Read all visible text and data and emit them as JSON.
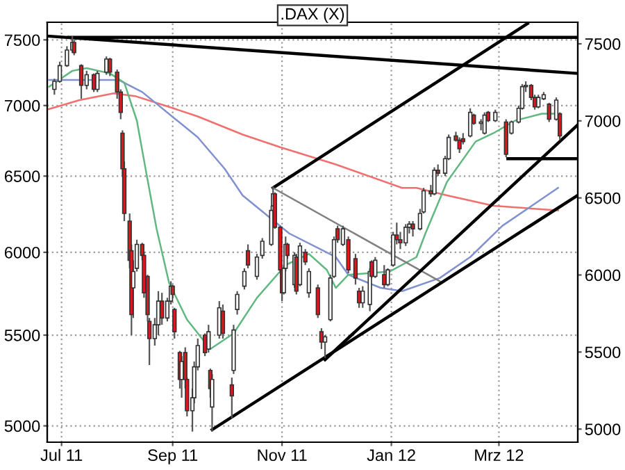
{
  "chart_data": {
    "type": "candlestick",
    "title": ".DAX (X)",
    "log": true,
    "grid": true,
    "xlim": [
      "2011-06-23",
      "2012-04-14"
    ],
    "y2lim": [
      4915,
      7640
    ],
    "y2ticks": [
      5000,
      5500,
      6000,
      6500,
      7000,
      7500
    ],
    "xticks": [
      {
        "value": "2011-07-01",
        "label": "Jul 11"
      },
      {
        "value": "2011-09-01",
        "label": "Sep 11"
      },
      {
        "value": "2011-11-01",
        "label": "Nov 11"
      },
      {
        "value": "2012-01-01",
        "label": "Jan 12"
      },
      {
        "value": "2012-03-01",
        "label": "Mrz 12"
      }
    ],
    "ylim": [
      4915,
      7640
    ],
    "yticks": [
      5000,
      5500,
      6000,
      6500,
      7000,
      7500
    ],
    "series": [
      {
        "type": "line",
        "color": "#f07070",
        "x": [
          "2011-06-23",
          "2011-07-11",
          "2011-07-30",
          "2011-08-11",
          "2011-08-30",
          "2011-09-15",
          "2011-10-10",
          "2011-10-31",
          "2011-12-01",
          "2012-01-07",
          "2012-01-15",
          "2012-02-01",
          "2012-02-27",
          "2012-04-03"
        ],
        "values": [
          6970,
          7040,
          7090,
          7070,
          6990,
          6920,
          6790,
          6700,
          6580,
          6420,
          6420,
          6370,
          6300,
          6270
        ]
      },
      {
        "type": "line",
        "color": "#8090d0",
        "x": [
          "2011-06-24",
          "2011-08-02",
          "2011-08-15",
          "2011-09-15",
          "2011-09-30",
          "2011-10-10",
          "2011-11-05",
          "2011-12-01",
          "2011-12-08",
          "2011-12-26",
          "2012-01-07",
          "2012-01-28",
          "2012-02-14",
          "2012-03-03",
          "2012-04-03"
        ],
        "values": [
          7190,
          7190,
          7100,
          6770,
          6550,
          6370,
          6120,
          5970,
          5860,
          5780,
          5760,
          5840,
          5970,
          6170,
          6420
        ]
      },
      {
        "type": "line",
        "color": "#60b880",
        "x": [
          "2011-06-24",
          "2011-07-07",
          "2011-07-15",
          "2011-07-28",
          "2011-08-05",
          "2011-08-12",
          "2011-08-17",
          "2011-08-23",
          "2011-08-30",
          "2011-09-09",
          "2011-09-22",
          "2011-10-05",
          "2011-10-18",
          "2011-11-03",
          "2011-11-16",
          "2011-11-26",
          "2011-12-01",
          "2011-12-08",
          "2011-12-31",
          "2012-01-15",
          "2012-01-20",
          "2012-02-01",
          "2012-02-17",
          "2012-02-27",
          "2012-03-10",
          "2012-03-25",
          "2012-04-02"
        ],
        "values": [
          7140,
          7260,
          7280,
          7240,
          7170,
          6890,
          6540,
          6150,
          5810,
          5590,
          5420,
          5510,
          5720,
          5920,
          5990,
          5890,
          5780,
          5860,
          5880,
          5970,
          6120,
          6460,
          6740,
          6800,
          6890,
          6940,
          6940
        ]
      },
      {
        "type": "line",
        "color": "#000000",
        "x": [
          "2011-06-23",
          "2012-04-14"
        ],
        "values": [
          7530,
          7240
        ]
      },
      {
        "type": "line",
        "color": "#000000",
        "x": [
          "2011-07-05",
          "2012-04-14"
        ],
        "values": [
          7520,
          7520
        ]
      },
      {
        "type": "line",
        "color": "#000000",
        "x": [
          "2011-10-27",
          "2012-03-17"
        ],
        "values": [
          6420,
          7630
        ]
      },
      {
        "type": "line",
        "color": "#808080",
        "x": [
          "2011-10-27",
          "2012-01-28"
        ],
        "values": [
          6420,
          5820
        ]
      },
      {
        "type": "line",
        "color": "#000000",
        "x": [
          "2011-09-23",
          "2012-04-14"
        ],
        "values": [
          4980,
          6370
        ]
      },
      {
        "type": "line",
        "color": "#000000",
        "x": [
          "2011-11-25",
          "2012-04-14"
        ],
        "values": [
          5360,
          6860
        ]
      },
      {
        "type": "line",
        "color": "#000000",
        "x": [
          "2012-03-06",
          "2012-04-14"
        ],
        "values": [
          6620,
          6620
        ]
      },
      {
        "colors": [
          "#ffffff",
          "#ffffff",
          "#ffffff",
          "#ffffff",
          "#e8141c",
          "#e8141c",
          "#ffffff",
          "#e8141c",
          "#ffffff",
          "#ffffff",
          "#e8141c",
          "#e8141c",
          "#e8141c",
          "#e8141c",
          "#e8141c",
          "#e8141c",
          "#e8141c",
          "#ffffff",
          "#ffffff",
          "#e8141c",
          "#e8141c",
          "#e8141c",
          "#e8141c",
          "#ffffff",
          "#ffffff",
          "#e8141c",
          "#ffffff",
          "#ffffff",
          "#e8141c",
          "#e8141c",
          "#e8141c",
          "#ffffff",
          "#e8141c",
          "#e8141c",
          "#ffffff",
          "#ffffff",
          "#ffffff",
          "#e8141c",
          "#ffffff",
          "#e8141c",
          "#ffffff",
          "#ffffff",
          "#e8141c",
          "#e8141c",
          "#ffffff",
          "#ffffff",
          "#ffffff",
          "#e8141c",
          "#ffffff",
          "#ffffff",
          "#ffffff",
          "#ffffff",
          "#e8141c",
          "#e8141c",
          "#e8141c",
          "#ffffff",
          "#ffffff",
          "#e8141c",
          "#ffffff",
          "#e8141c",
          "#ffffff",
          "#e8141c",
          "#ffffff",
          "#e8141c",
          "#e8141c",
          "#ffffff",
          "#ffffff",
          "#ffffff",
          "#e8141c",
          "#ffffff",
          "#e8141c",
          "#e8141c",
          "#e8141c",
          "#ffffff",
          "#ffffff",
          "#e8141c",
          "#ffffff",
          "#e8141c",
          "#ffffff",
          "#ffffff",
          "#e8141c",
          "#e8141c",
          "#ffffff",
          "#ffffff",
          "#e8141c",
          "#ffffff",
          "#ffffff",
          "#e8141c",
          "#ffffff",
          "#e8141c",
          "#ffffff",
          "#ffffff",
          "#e8141c",
          "#e8141c",
          "#e8141c",
          "#ffffff",
          "#e8141c",
          "#ffffff",
          "#ffffff",
          "#e8141c",
          "#ffffff",
          "#e8141c",
          "#ffffff",
          "#ffffff",
          "#ffffff",
          "#ffffff",
          "#e8141c",
          "#e8141c",
          "#ffffff",
          "#ffffff",
          "#e8141c",
          "#ffffff",
          "#e8141c"
        ],
        "x": [
          "2011-06-27",
          "2011-06-30",
          "2011-07-04",
          "2011-07-07",
          "2011-07-08",
          "2011-07-12",
          "2011-07-15",
          "2011-07-19",
          "2011-07-21",
          "2011-07-26",
          "2011-07-28",
          "2011-08-01",
          "2011-08-03",
          "2011-08-04",
          "2011-08-05",
          "2011-08-08",
          "2011-08-09",
          "2011-08-10",
          "2011-08-12",
          "2011-08-15",
          "2011-08-16",
          "2011-08-18",
          "2011-08-19",
          "2011-08-22",
          "2011-08-24",
          "2011-08-26",
          "2011-08-29",
          "2011-08-31",
          "2011-09-01",
          "2011-09-02",
          "2011-09-05",
          "2011-09-06",
          "2011-09-08",
          "2011-09-09",
          "2011-09-12",
          "2011-09-13",
          "2011-09-15",
          "2011-09-19",
          "2011-09-21",
          "2011-09-22",
          "2011-09-23",
          "2011-09-27",
          "2011-09-29",
          "2011-10-04",
          "2011-10-05",
          "2011-10-07",
          "2011-10-11",
          "2011-10-13",
          "2011-10-18",
          "2011-10-21",
          "2011-10-26",
          "2011-10-27",
          "2011-10-28",
          "2011-10-31",
          "2011-11-01",
          "2011-11-02",
          "2011-11-03",
          "2011-11-04",
          "2011-11-08",
          "2011-11-09",
          "2011-11-11",
          "2011-11-14",
          "2011-11-16",
          "2011-11-21",
          "2011-11-23",
          "2011-11-25",
          "2011-11-28",
          "2011-11-30",
          "2011-12-02",
          "2011-12-05",
          "2011-12-08",
          "2011-12-12",
          "2011-12-14",
          "2011-12-16",
          "2011-12-20",
          "2011-12-21",
          "2011-12-23",
          "2011-12-28",
          "2011-12-30",
          "2012-01-02",
          "2012-01-04",
          "2012-01-06",
          "2012-01-09",
          "2012-01-11",
          "2012-01-13",
          "2012-01-17",
          "2012-01-19",
          "2012-01-23",
          "2012-01-25",
          "2012-01-27",
          "2012-01-31",
          "2012-02-02",
          "2012-02-06",
          "2012-02-08",
          "2012-02-10",
          "2012-02-14",
          "2012-02-16",
          "2012-02-20",
          "2012-02-22",
          "2012-02-24",
          "2012-02-28",
          "2012-03-05",
          "2012-03-08",
          "2012-03-12",
          "2012-03-14",
          "2012-03-16",
          "2012-03-19",
          "2012-03-21",
          "2012-03-23",
          "2012-03-26",
          "2012-03-29",
          "2012-04-02",
          "2012-04-04"
        ],
        "ohlc": [
          [
            7120,
            7200,
            7080,
            7180
          ],
          [
            7180,
            7330,
            7170,
            7300
          ],
          [
            7300,
            7450,
            7290,
            7420
          ],
          [
            7420,
            7530,
            7400,
            7480
          ],
          [
            7480,
            7500,
            7380,
            7400
          ],
          [
            7300,
            7310,
            7050,
            7150
          ],
          [
            7150,
            7260,
            7120,
            7230
          ],
          [
            7230,
            7240,
            7100,
            7120
          ],
          [
            7120,
            7260,
            7100,
            7240
          ],
          [
            7250,
            7370,
            7230,
            7350
          ],
          [
            7350,
            7360,
            7220,
            7250
          ],
          [
            7250,
            7270,
            7050,
            7100
          ],
          [
            7100,
            7120,
            6900,
            6950
          ],
          [
            6800,
            6820,
            6500,
            6550
          ],
          [
            6550,
            6600,
            6200,
            6250
          ],
          [
            6200,
            6250,
            5900,
            5950
          ],
          [
            6010,
            6050,
            5500,
            5620
          ],
          [
            5780,
            5950,
            5600,
            5880
          ],
          [
            5900,
            6080,
            5880,
            6050
          ],
          [
            6050,
            6060,
            5950,
            5980
          ],
          [
            5980,
            6000,
            5720,
            5750
          ],
          [
            5850,
            5860,
            5580,
            5620
          ],
          [
            5580,
            5600,
            5330,
            5480
          ],
          [
            5480,
            5600,
            5440,
            5560
          ],
          [
            5560,
            5760,
            5500,
            5700
          ],
          [
            5700,
            5750,
            5560,
            5600
          ],
          [
            5600,
            5720,
            5580,
            5700
          ],
          [
            5700,
            5820,
            5680,
            5790
          ],
          [
            5790,
            5800,
            5720,
            5740
          ],
          [
            5650,
            5660,
            5480,
            5520
          ],
          [
            5400,
            5410,
            5200,
            5250
          ],
          [
            5250,
            5380,
            5150,
            5350
          ],
          [
            5400,
            5430,
            5200,
            5250
          ],
          [
            5250,
            5260,
            5050,
            5080
          ],
          [
            5080,
            5200,
            4970,
            5150
          ],
          [
            5150,
            5350,
            5120,
            5320
          ],
          [
            5320,
            5480,
            5300,
            5440
          ],
          [
            5500,
            5510,
            5380,
            5400
          ],
          [
            5420,
            5560,
            5400,
            5520
          ],
          [
            5300,
            5310,
            5150,
            5200
          ],
          [
            5100,
            5280,
            4970,
            5250
          ],
          [
            5500,
            5700,
            5480,
            5660
          ],
          [
            5640,
            5680,
            5480,
            5510
          ],
          [
            5220,
            5260,
            5040,
            5160
          ],
          [
            5300,
            5560,
            5280,
            5530
          ],
          [
            5650,
            5760,
            5620,
            5740
          ],
          [
            5790,
            5900,
            5770,
            5880
          ],
          [
            6010,
            6050,
            5900,
            5920
          ],
          [
            5850,
            5990,
            5830,
            5970
          ],
          [
            5980,
            6090,
            5960,
            6070
          ],
          [
            6050,
            6300,
            6040,
            6270
          ],
          [
            6300,
            6430,
            6300,
            6380
          ],
          [
            6380,
            6390,
            6150,
            6160
          ],
          [
            6160,
            6170,
            5870,
            5890
          ],
          [
            5890,
            5900,
            5700,
            5750
          ],
          [
            5750,
            5920,
            5740,
            5900
          ],
          [
            5900,
            6100,
            5880,
            6050
          ],
          [
            6050,
            6060,
            5960,
            5980
          ],
          [
            5800,
            6000,
            5780,
            5980
          ],
          [
            5970,
            5990,
            5740,
            5760
          ],
          [
            5800,
            6060,
            5790,
            6040
          ],
          [
            6000,
            6020,
            5920,
            5940
          ],
          [
            5750,
            5900,
            5720,
            5880
          ],
          [
            5780,
            5800,
            5600,
            5620
          ],
          [
            5520,
            5540,
            5420,
            5460
          ],
          [
            5460,
            5500,
            5370,
            5490
          ],
          [
            5590,
            5860,
            5580,
            5840
          ],
          [
            5850,
            6100,
            5840,
            6080
          ],
          [
            6150,
            6170,
            6060,
            6080
          ],
          [
            6050,
            6170,
            6040,
            6150
          ],
          [
            6080,
            6100,
            5870,
            5890
          ],
          [
            5960,
            5990,
            5800,
            5840
          ],
          [
            5760,
            5780,
            5660,
            5690
          ],
          [
            5690,
            5790,
            5660,
            5760
          ],
          [
            5680,
            5900,
            5640,
            5880
          ],
          [
            5940,
            5950,
            5840,
            5850
          ],
          [
            5850,
            5970,
            5840,
            5950
          ],
          [
            5860,
            5920,
            5780,
            5800
          ],
          [
            5800,
            5900,
            5790,
            5890
          ],
          [
            5920,
            6130,
            5910,
            6110
          ],
          [
            6110,
            6190,
            6050,
            6080
          ],
          [
            6080,
            6130,
            6020,
            6060
          ],
          [
            6060,
            6180,
            6040,
            6160
          ],
          [
            6160,
            6200,
            6120,
            6180
          ],
          [
            6180,
            6200,
            6100,
            6150
          ],
          [
            6150,
            6280,
            6140,
            6250
          ],
          [
            6260,
            6420,
            6250,
            6400
          ],
          [
            6400,
            6440,
            6360,
            6380
          ],
          [
            6380,
            6560,
            6370,
            6540
          ],
          [
            6540,
            6580,
            6500,
            6520
          ],
          [
            6520,
            6640,
            6500,
            6620
          ],
          [
            6620,
            6790,
            6610,
            6770
          ],
          [
            6780,
            6810,
            6740,
            6750
          ],
          [
            6750,
            6770,
            6660,
            6690
          ],
          [
            6760,
            6800,
            6720,
            6740
          ],
          [
            6780,
            6980,
            6770,
            6950
          ],
          [
            6930,
            6940,
            6860,
            6870
          ],
          [
            6870,
            6900,
            6820,
            6880
          ],
          [
            6800,
            6950,
            6790,
            6930
          ],
          [
            6950,
            6960,
            6880,
            6890
          ],
          [
            6890,
            6970,
            6880,
            6950
          ],
          [
            6880,
            6900,
            6630,
            6650
          ],
          [
            6800,
            6890,
            6790,
            6880
          ],
          [
            6880,
            7000,
            6870,
            6980
          ],
          [
            6980,
            7160,
            6970,
            7140
          ],
          [
            7140,
            7180,
            7100,
            7150
          ],
          [
            7150,
            7160,
            7040,
            7060
          ],
          [
            7060,
            7080,
            6970,
            6990
          ],
          [
            6990,
            7080,
            6980,
            7060
          ],
          [
            7050,
            7100,
            7040,
            7080
          ],
          [
            7010,
            7020,
            6880,
            6900
          ],
          [
            6900,
            7060,
            6890,
            7040
          ],
          [
            6940,
            6950,
            6750,
            6780
          ]
        ]
      }
    ]
  }
}
